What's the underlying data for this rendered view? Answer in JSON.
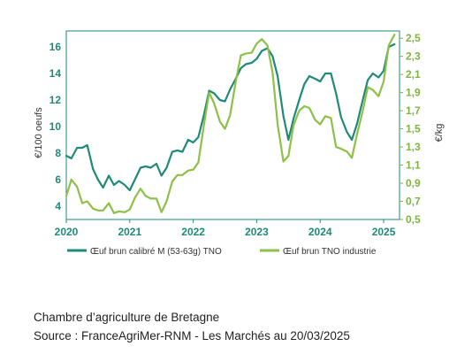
{
  "chart_data": {
    "type": "line",
    "title": "",
    "xlabel": "",
    "ylabel": "€/100 oeufs",
    "y2label": "€/kg",
    "x_ticks": [
      "2020",
      "2021",
      "2022",
      "2023",
      "2024",
      "2025"
    ],
    "y_ticks": [
      "4",
      "6",
      "8",
      "10",
      "12",
      "14",
      "16"
    ],
    "y2_ticks": [
      "0,5",
      "0,7",
      "0,9",
      "1,1",
      "1,3",
      "1,5",
      "1,7",
      "1,9",
      "2,1",
      "2,3",
      "2,5"
    ],
    "ylim": [
      3,
      17.2
    ],
    "y2lim": [
      0.5,
      2.58
    ],
    "xlim": [
      2020,
      2025.25
    ],
    "legend_position": "bottom",
    "series": [
      {
        "name": "Œuf brun calibré M (53-63g) TNO",
        "axis": "left",
        "color": "#1f8a78",
        "x": [
          2020.0,
          2020.08,
          2020.17,
          2020.25,
          2020.33,
          2020.42,
          2020.5,
          2020.58,
          2020.67,
          2020.75,
          2020.83,
          2020.92,
          2021.0,
          2021.08,
          2021.17,
          2021.25,
          2021.33,
          2021.42,
          2021.5,
          2021.58,
          2021.67,
          2021.75,
          2021.83,
          2021.92,
          2022.0,
          2022.08,
          2022.17,
          2022.25,
          2022.33,
          2022.42,
          2022.5,
          2022.58,
          2022.67,
          2022.75,
          2022.83,
          2022.92,
          2023.0,
          2023.08,
          2023.17,
          2023.25,
          2023.33,
          2023.42,
          2023.5,
          2023.58,
          2023.67,
          2023.75,
          2023.83,
          2023.92,
          2024.0,
          2024.08,
          2024.17,
          2024.25,
          2024.33,
          2024.42,
          2024.5,
          2024.58,
          2024.67,
          2024.75,
          2024.83,
          2024.92,
          2025.0,
          2025.08,
          2025.17
        ],
        "values": [
          7.8,
          7.6,
          8.4,
          8.4,
          8.6,
          6.8,
          6.0,
          5.4,
          6.3,
          5.6,
          5.9,
          5.6,
          5.2,
          6.0,
          6.9,
          7.0,
          6.9,
          7.2,
          6.3,
          6.9,
          8.1,
          8.2,
          8.1,
          9.0,
          8.8,
          9.2,
          10.9,
          12.7,
          12.5,
          12.0,
          11.9,
          12.8,
          13.6,
          14.4,
          14.7,
          14.8,
          15.1,
          15.7,
          15.9,
          15.3,
          13.8,
          10.8,
          9.0,
          10.6,
          12.0,
          13.2,
          13.8,
          13.6,
          13.4,
          14.0,
          14.0,
          12.5,
          10.7,
          9.6,
          9.0,
          10.2,
          12.0,
          13.5,
          14.0,
          13.7,
          14.2,
          16.0,
          16.2
        ]
      },
      {
        "name": "Œuf brun TNO industrie",
        "axis": "right",
        "color": "#8dc046",
        "x": [
          2020.0,
          2020.08,
          2020.17,
          2020.25,
          2020.33,
          2020.42,
          2020.5,
          2020.58,
          2020.67,
          2020.75,
          2020.83,
          2020.92,
          2021.0,
          2021.08,
          2021.17,
          2021.25,
          2021.33,
          2021.42,
          2021.5,
          2021.58,
          2021.67,
          2021.75,
          2021.83,
          2021.92,
          2022.0,
          2022.08,
          2022.17,
          2022.25,
          2022.33,
          2022.42,
          2022.5,
          2022.58,
          2022.67,
          2022.75,
          2022.83,
          2022.92,
          2023.0,
          2023.08,
          2023.17,
          2023.25,
          2023.33,
          2023.42,
          2023.5,
          2023.58,
          2023.67,
          2023.75,
          2023.83,
          2023.92,
          2024.0,
          2024.08,
          2024.17,
          2024.25,
          2024.33,
          2024.42,
          2024.5,
          2024.58,
          2024.67,
          2024.75,
          2024.83,
          2024.92,
          2025.0,
          2025.08,
          2025.17
        ],
        "values": [
          0.76,
          0.94,
          0.86,
          0.68,
          0.7,
          0.62,
          0.6,
          0.6,
          0.68,
          0.57,
          0.59,
          0.58,
          0.61,
          0.74,
          0.84,
          0.76,
          0.73,
          0.73,
          0.58,
          0.7,
          0.92,
          0.99,
          0.99,
          1.04,
          1.05,
          1.13,
          1.55,
          1.9,
          1.78,
          1.58,
          1.5,
          1.65,
          2.02,
          2.31,
          2.33,
          2.34,
          2.44,
          2.49,
          2.42,
          2.12,
          1.55,
          1.14,
          1.2,
          1.54,
          1.7,
          1.75,
          1.73,
          1.6,
          1.55,
          1.64,
          1.62,
          1.3,
          1.28,
          1.25,
          1.18,
          1.44,
          1.7,
          1.96,
          1.93,
          1.86,
          2.02,
          2.42,
          2.54
        ]
      }
    ]
  },
  "caption": {
    "line1": "Chambre d’agriculture de Bretagne",
    "line2": "Source : FranceAgriMer-RNM - Les Marchés au 20/03/2025"
  }
}
